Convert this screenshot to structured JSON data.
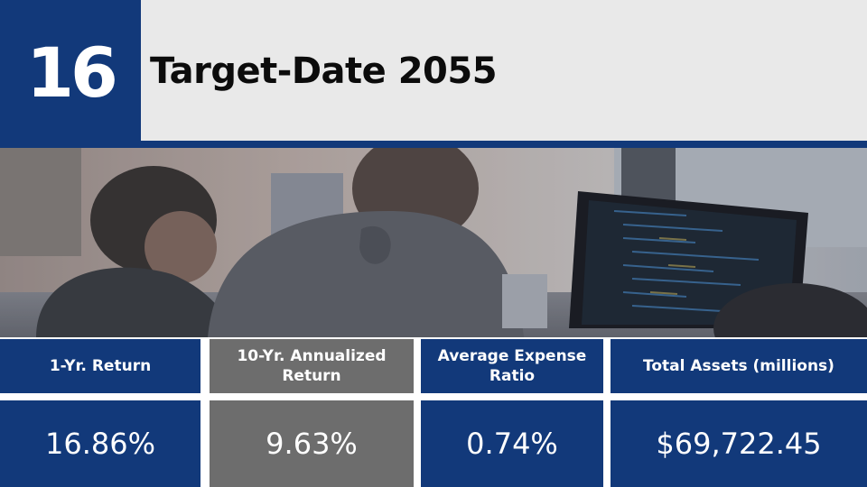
{
  "rank": "16",
  "title": "Target-Date 2055",
  "stats": [
    {
      "label": "1-Yr. Return",
      "value": "16.86%"
    },
    {
      "label": "10-Yr. Annualized Return",
      "value": "9.63%"
    },
    {
      "label": "Average Expense Ratio",
      "value": "0.74%"
    },
    {
      "label": "Total Assets (millions)",
      "value": "$69,722.45"
    }
  ],
  "colors": {
    "brand_blue": "#12397a",
    "title_bg": "#e9e9e9",
    "highlight_gray": "#6d6d6d"
  },
  "photo": {
    "description_icon": "office-photo"
  }
}
